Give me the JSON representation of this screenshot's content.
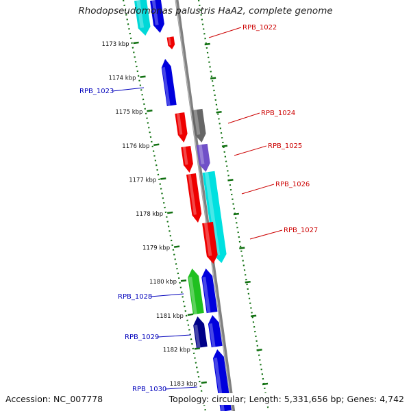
{
  "title": "Rhodopseudomonas palustris HaA2, complete genome",
  "footer": {
    "accession": "Accession: NC_007778",
    "topology": "Topology: circular; Length: 5,331,656 bp; Genes: 4,742"
  },
  "colors": {
    "backbone": "#808080",
    "tick": "#107010",
    "forward_label": "#cc0000",
    "reverse_label": "#0000bb"
  },
  "kbp_labels": [
    "1173 kbp",
    "1174 kbp",
    "1175 kbp",
    "1176 kbp",
    "1177 kbp",
    "1178 kbp",
    "1179 kbp",
    "1180 kbp",
    "1181 kbp",
    "1182 kbp",
    "1183 kbp"
  ],
  "gene_labels": [
    {
      "text": "RPB_1022",
      "side": "right"
    },
    {
      "text": "RPB_1023",
      "side": "left"
    },
    {
      "text": "RPB_1024",
      "side": "right"
    },
    {
      "text": "RPB_1025",
      "side": "right"
    },
    {
      "text": "RPB_1026",
      "side": "right"
    },
    {
      "text": "RPB_1027",
      "side": "right"
    },
    {
      "text": "RPB_1028",
      "side": "left"
    },
    {
      "text": "RPB_1029",
      "side": "left"
    },
    {
      "text": "RPB_1030",
      "side": "left"
    }
  ],
  "features": [
    {
      "name": "cyan-top-left",
      "color": "#00d8d8"
    },
    {
      "name": "blue-top-left",
      "color": "#0000dd"
    },
    {
      "name": "RPB_1022",
      "color": "#ee0000"
    },
    {
      "name": "RPB_1023",
      "color": "#0000dd"
    },
    {
      "name": "red-1024",
      "color": "#ee0000"
    },
    {
      "name": "gray-1024",
      "color": "#666666"
    },
    {
      "name": "red-1025",
      "color": "#ee0000"
    },
    {
      "name": "purple-1025",
      "color": "#7050c8"
    },
    {
      "name": "red-1026",
      "color": "#ee0000"
    },
    {
      "name": "cyan-1026",
      "color": "#00e0e0"
    },
    {
      "name": "red-1027",
      "color": "#ee0000"
    },
    {
      "name": "green-1028",
      "color": "#20c020"
    },
    {
      "name": "blue-1028",
      "color": "#0000dd"
    },
    {
      "name": "navy-1029",
      "color": "#000088"
    },
    {
      "name": "blue-1029",
      "color": "#0000dd"
    },
    {
      "name": "blue-1030",
      "color": "#0000dd"
    }
  ]
}
